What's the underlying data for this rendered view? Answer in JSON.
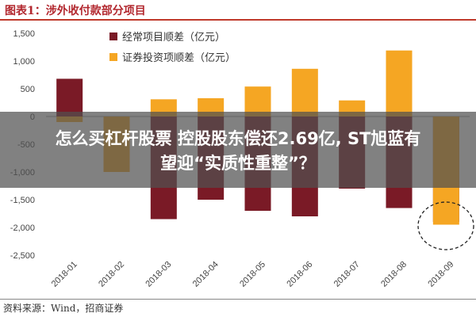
{
  "figure": {
    "title": "图表1：涉外收付款部分项目",
    "source": "资料来源：Wind，招商证券"
  },
  "headline": {
    "line1": "怎么买杠杆股票 控股股东偿还2.69亿, ST旭蓝有",
    "line2": "望迎“实质性重整”？"
  },
  "colors": {
    "series_current": "#7a1a26",
    "series_securities": "#f5a623",
    "title_red": "#b2272e",
    "banner": "rgba(80,80,80,0.72)"
  },
  "chart_data": {
    "type": "bar",
    "categories": [
      "2018-01",
      "2018-02",
      "2018-03",
      "2018-04",
      "2018-05",
      "2018-06",
      "2018-07",
      "2018-08",
      "2018-09"
    ],
    "series": [
      {
        "name": "经常项目顺差（亿元）",
        "values": [
          680,
          -370,
          -1850,
          -1500,
          -1700,
          -1800,
          -1300,
          -1650,
          -1900
        ]
      },
      {
        "name": "证券投资项顺差（亿元）",
        "values": [
          -100,
          -1000,
          310,
          330,
          540,
          860,
          290,
          1190,
          -1950
        ]
      }
    ],
    "ylim": [
      -2500,
      1500
    ],
    "yticks": [
      "1,500",
      "1,000",
      "500",
      "0",
      "-500",
      "-1,000",
      "-1,500",
      "-2,000",
      "-2,500"
    ],
    "ytick_values": [
      1500,
      1000,
      500,
      0,
      -500,
      -1000,
      -1500,
      -2000,
      -2500
    ],
    "legend": "top-left",
    "annotation": "dashed circle around 2018-09"
  }
}
